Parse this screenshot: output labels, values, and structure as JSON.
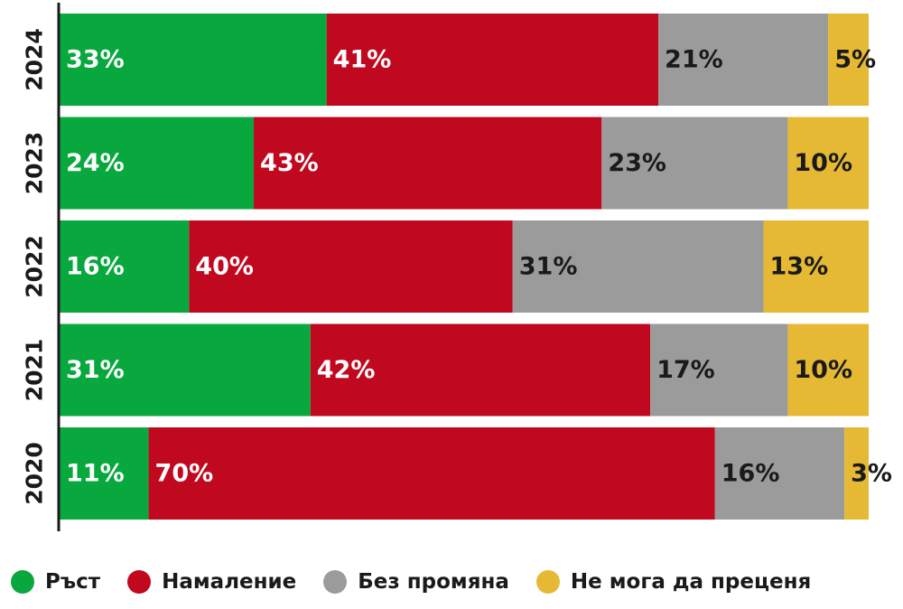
{
  "chart_data": {
    "type": "bar",
    "orientation": "horizontal",
    "stacked": true,
    "normalized_percent": true,
    "categories": [
      "2024",
      "2023",
      "2022",
      "2021",
      "2020"
    ],
    "series": [
      {
        "name": "Ръст",
        "color": "#08a83f",
        "label_color": "#ffffff",
        "values": [
          33,
          24,
          16,
          31,
          11
        ]
      },
      {
        "name": "Намаление",
        "color": "#c0081f",
        "label_color": "#ffffff",
        "values": [
          41,
          43,
          40,
          42,
          70
        ]
      },
      {
        "name": "Без промяна",
        "color": "#9b9b9b",
        "label_color": "#1a1a1a",
        "values": [
          21,
          23,
          31,
          17,
          16
        ]
      },
      {
        "name": "Не мога да преценя",
        "color": "#e6b935",
        "label_color": "#1a1a1a",
        "values": [
          5,
          10,
          13,
          10,
          3
        ]
      }
    ],
    "value_suffix": "%",
    "xlim": [
      0,
      100
    ],
    "grid": false,
    "legend_position": "bottom"
  },
  "legend": {
    "items": [
      {
        "label": "Ръст",
        "color": "#08a83f"
      },
      {
        "label": "Намаление",
        "color": "#c0081f"
      },
      {
        "label": "Без промяна",
        "color": "#9b9b9b"
      },
      {
        "label": "Не мога да преценя",
        "color": "#e6b935"
      }
    ]
  }
}
